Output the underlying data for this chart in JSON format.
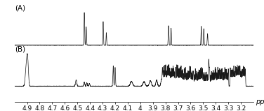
{
  "x_min": 3.15,
  "x_max": 4.95,
  "x_ticks": [
    4.9,
    4.8,
    4.7,
    4.6,
    4.5,
    4.4,
    4.3,
    4.2,
    4.1,
    4.0,
    3.9,
    3.8,
    3.7,
    3.6,
    3.5,
    3.4,
    3.3,
    3.2
  ],
  "x_label": "ppm",
  "background_color": "#ffffff",
  "line_color": "#1a1a1a",
  "label_A": "(A)",
  "label_B": "(B)",
  "fontsize_tick": 6.5,
  "fontsize_label": 7,
  "fontsize_panel": 7.5
}
